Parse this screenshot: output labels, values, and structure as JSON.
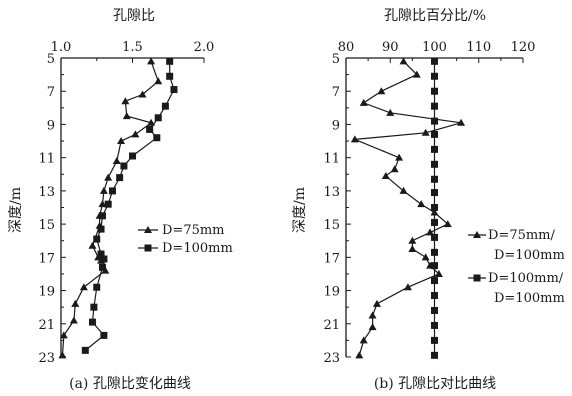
{
  "chart_data": [
    {
      "type": "line",
      "title": "孔隙比",
      "ylabel": "深度/m",
      "caption": "(a) 孔隙比变化曲线",
      "xlim": [
        1.0,
        2.0
      ],
      "xticks": [
        "1.0",
        "1.5",
        "2.0"
      ],
      "ylim": [
        5,
        23
      ],
      "yticks": [
        "5",
        "7",
        "9",
        "11",
        "13",
        "15",
        "17",
        "19",
        "21",
        "23"
      ],
      "legend": [
        "D=75mm",
        "D=100mm"
      ],
      "series": [
        {
          "name": "D=75mm",
          "marker": "triangle",
          "points": [
            [
              1.63,
              5.2
            ],
            [
              1.68,
              6.4
            ],
            [
              1.57,
              7.2
            ],
            [
              1.45,
              7.6
            ],
            [
              1.46,
              8.5
            ],
            [
              1.63,
              8.9
            ],
            [
              1.52,
              9.6
            ],
            [
              1.42,
              10.0
            ],
            [
              1.39,
              11.2
            ],
            [
              1.33,
              12.2
            ],
            [
              1.3,
              13.0
            ],
            [
              1.29,
              13.8
            ],
            [
              1.27,
              14.5
            ],
            [
              1.27,
              15.1
            ],
            [
              1.22,
              16.3
            ],
            [
              1.26,
              17.0
            ],
            [
              1.28,
              17.2
            ],
            [
              1.31,
              17.8
            ],
            [
              1.16,
              18.8
            ],
            [
              1.1,
              19.8
            ],
            [
              1.09,
              20.8
            ],
            [
              1.02,
              21.7
            ],
            [
              1.01,
              22.9
            ]
          ]
        },
        {
          "name": "D=100mm",
          "marker": "square",
          "points": [
            [
              1.76,
              5.2
            ],
            [
              1.76,
              6.1
            ],
            [
              1.79,
              6.9
            ],
            [
              1.73,
              7.9
            ],
            [
              1.68,
              8.6
            ],
            [
              1.62,
              9.3
            ],
            [
              1.67,
              9.8
            ],
            [
              1.5,
              10.9
            ],
            [
              1.44,
              11.5
            ],
            [
              1.41,
              12.2
            ],
            [
              1.36,
              13.0
            ],
            [
              1.33,
              13.8
            ],
            [
              1.29,
              14.5
            ],
            [
              1.28,
              15.3
            ],
            [
              1.25,
              15.9
            ],
            [
              1.28,
              16.8
            ],
            [
              1.3,
              17.1
            ],
            [
              1.29,
              17.6
            ],
            [
              1.25,
              18.8
            ],
            [
              1.23,
              20.0
            ],
            [
              1.22,
              20.9
            ],
            [
              1.3,
              21.7
            ],
            [
              1.17,
              22.6
            ]
          ]
        }
      ]
    },
    {
      "type": "line",
      "title": "孔隙比百分比/%",
      "ylabel": "深度/m",
      "caption": "(b) 孔隙比对比曲线",
      "xlim": [
        80,
        120
      ],
      "xticks": [
        "80",
        "90",
        "100",
        "110",
        "120"
      ],
      "ylim": [
        5,
        23
      ],
      "yticks": [
        "5",
        "7",
        "9",
        "11",
        "13",
        "15",
        "17",
        "19",
        "21",
        "23"
      ],
      "legend": [
        "D=75mm/",
        "D=100mm",
        "D=100mm/",
        "D=100mm"
      ],
      "series": [
        {
          "name": "D=75mm/D=100mm",
          "marker": "triangle",
          "points": [
            [
              93,
              5.2
            ],
            [
              96,
              6.0
            ],
            [
              88,
              7.0
            ],
            [
              84,
              7.7
            ],
            [
              90,
              8.3
            ],
            [
              106,
              8.9
            ],
            [
              98,
              9.5
            ],
            [
              82,
              9.9
            ],
            [
              92,
              11.0
            ],
            [
              91,
              11.7
            ],
            [
              89,
              12.1
            ],
            [
              93,
              13.0
            ],
            [
              97,
              13.8
            ],
            [
              100,
              14.3
            ],
            [
              103,
              15.0
            ],
            [
              99,
              15.5
            ],
            [
              95,
              16.0
            ],
            [
              95,
              16.5
            ],
            [
              98,
              17.0
            ],
            [
              99,
              17.5
            ],
            [
              101,
              18.0
            ],
            [
              94,
              18.8
            ],
            [
              87,
              19.8
            ],
            [
              86,
              20.5
            ],
            [
              86,
              21.2
            ],
            [
              84,
              22.0
            ],
            [
              83,
              22.9
            ]
          ]
        },
        {
          "name": "D=100mm/D=100mm",
          "marker": "square",
          "points": [
            [
              100,
              5.2
            ],
            [
              100,
              6.1
            ],
            [
              100,
              7.0
            ],
            [
              100,
              7.9
            ],
            [
              100,
              8.8
            ],
            [
              100,
              9.6
            ],
            [
              100,
              10.5
            ],
            [
              100,
              11.4
            ],
            [
              100,
              12.3
            ],
            [
              100,
              13.1
            ],
            [
              100,
              14.0
            ],
            [
              100,
              14.9
            ],
            [
              100,
              15.8
            ],
            [
              100,
              16.7
            ],
            [
              100,
              17.5
            ],
            [
              100,
              18.4
            ],
            [
              100,
              19.3
            ],
            [
              100,
              20.2
            ],
            [
              100,
              21.1
            ],
            [
              100,
              22.0
            ],
            [
              100,
              22.9
            ]
          ]
        }
      ]
    }
  ]
}
